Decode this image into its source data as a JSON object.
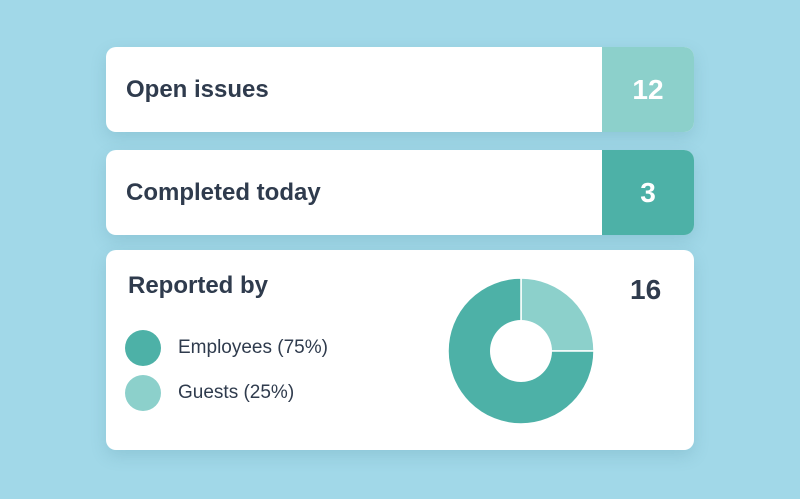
{
  "colors": {
    "background": "#a1d8e8",
    "accent_light": "#8cd0cb",
    "accent_dark": "#4db1a7",
    "text": "#2f3b4d"
  },
  "open_issues": {
    "label": "Open issues",
    "value": "12"
  },
  "completed_today": {
    "label": "Completed today",
    "value": "3"
  },
  "reported_by": {
    "title": "Reported by",
    "total": "16",
    "legend": [
      {
        "label": "Employees (75%)",
        "percent": 75,
        "color": "#4db1a7"
      },
      {
        "label": "Guests (25%)",
        "percent": 25,
        "color": "#8cd0cb"
      }
    ]
  }
}
